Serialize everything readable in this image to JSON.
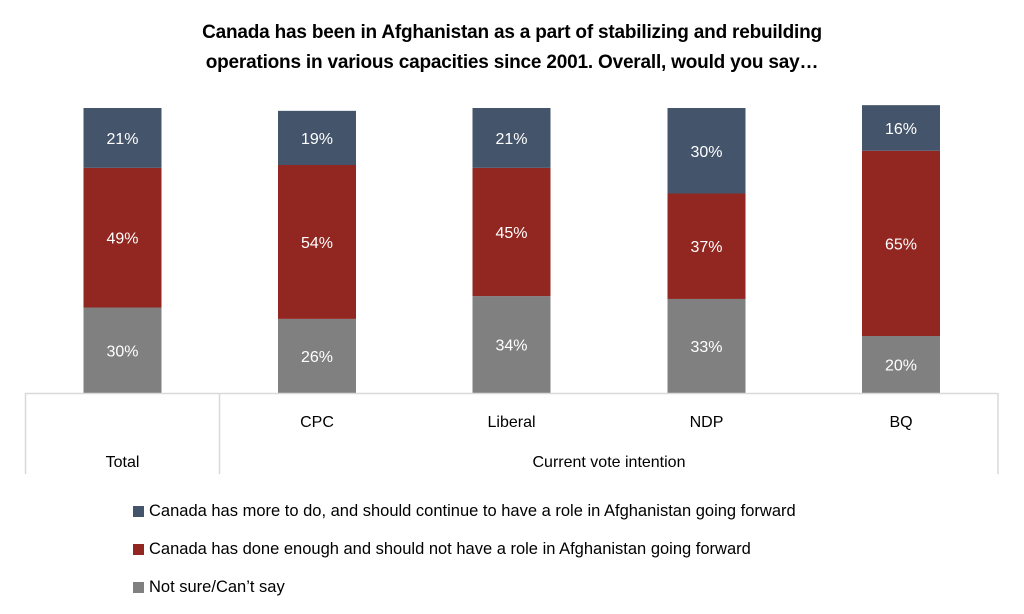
{
  "chart_data": {
    "type": "bar",
    "stacked": true,
    "title": "Canada has been in Afghanistan as a part of stabilizing and rebuilding operations in various capacities since 2001. Overall, would you say…",
    "title_lines": [
      "Canada has been in Afghanistan as a part of stabilizing and rebuilding",
      "operations in various capacities since 2001. Overall, would you say…"
    ],
    "xlabel": "",
    "ylabel": "",
    "ylim": [
      0,
      100
    ],
    "grid": false,
    "categories": [
      "Total",
      "CPC",
      "Liberal",
      "NDP",
      "BQ"
    ],
    "category_axis_labels": [
      "",
      "CPC",
      "Liberal",
      "NDP",
      "BQ"
    ],
    "category_groups": [
      {
        "label": "Total",
        "categories": [
          "Total"
        ]
      },
      {
        "label": "Current vote intention",
        "categories": [
          "CPC",
          "Liberal",
          "NDP",
          "BQ"
        ]
      }
    ],
    "series": [
      {
        "name": "Not sure/Can’t say",
        "color": "#808080",
        "values": [
          30,
          26,
          34,
          33,
          20
        ]
      },
      {
        "name": "Canada has done enough and should not have a role in Afghanistan going forward",
        "color": "#922620",
        "values": [
          49,
          54,
          45,
          37,
          65
        ]
      },
      {
        "name": "Canada has more to do, and should continue to have a role in Afghanistan going forward",
        "color": "#44546A",
        "values": [
          21,
          19,
          21,
          30,
          16
        ]
      }
    ],
    "data_label_suffix": "%",
    "legend": {
      "position": "bottom",
      "order": [
        "Canada has more to do, and should continue to have a role in Afghanistan going forward",
        "Canada has done enough and should not have a role in Afghanistan going forward",
        "Not sure/Can’t say"
      ]
    }
  }
}
